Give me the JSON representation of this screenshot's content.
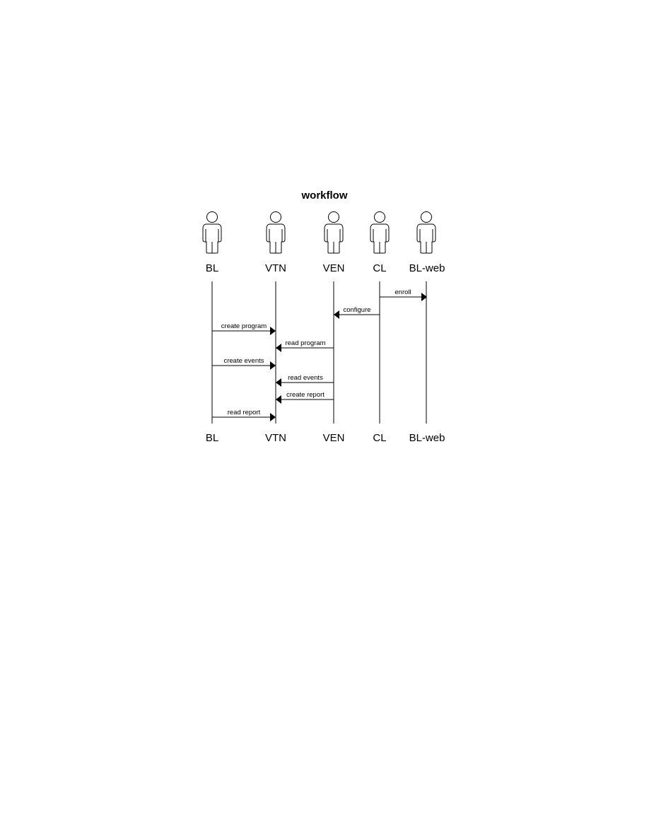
{
  "diagram": {
    "title": "workflow",
    "participants": [
      {
        "id": "bl",
        "label": "BL"
      },
      {
        "id": "vtn",
        "label": "VTN"
      },
      {
        "id": "ven",
        "label": "VEN"
      },
      {
        "id": "cl",
        "label": "CL"
      },
      {
        "id": "blweb",
        "label": "BL-web"
      }
    ],
    "messages": [
      {
        "from": "cl",
        "to": "blweb",
        "label": "enroll"
      },
      {
        "from": "cl",
        "to": "ven",
        "label": "configure"
      },
      {
        "from": "bl",
        "to": "vtn",
        "label": "create program"
      },
      {
        "from": "ven",
        "to": "vtn",
        "label": "read program"
      },
      {
        "from": "bl",
        "to": "vtn",
        "label": "create events"
      },
      {
        "from": "ven",
        "to": "vtn",
        "label": "read events"
      },
      {
        "from": "ven",
        "to": "vtn",
        "label": "create report"
      },
      {
        "from": "bl",
        "to": "vtn",
        "label": "read report"
      }
    ]
  }
}
